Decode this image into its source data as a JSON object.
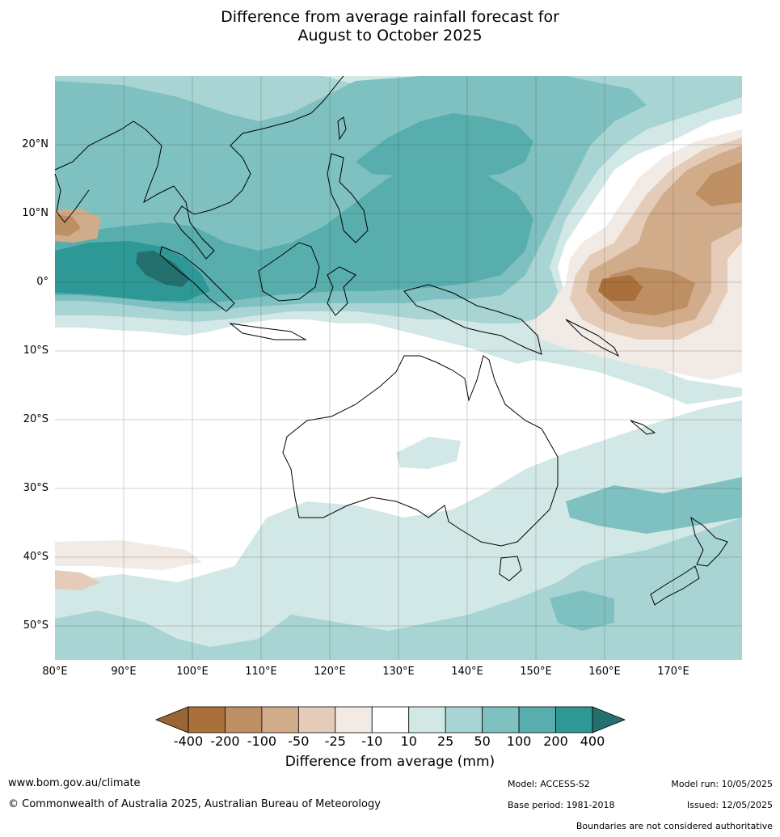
{
  "title": {
    "line1": "Difference from average rainfall forecast for",
    "line2": "August to October 2025"
  },
  "map": {
    "lat_labels": [
      "20°N",
      "10°N",
      "0°",
      "10°S",
      "20°S",
      "30°S",
      "40°S",
      "50°S"
    ],
    "lon_labels": [
      "80°E",
      "90°E",
      "100°E",
      "110°E",
      "120°E",
      "130°E",
      "140°E",
      "150°E",
      "160°E",
      "170°E"
    ],
    "lat_range": [
      -55,
      30
    ],
    "lon_range": [
      80,
      180
    ],
    "grid": true
  },
  "colorbar": {
    "ticks": [
      "-400",
      "-200",
      "-100",
      "-50",
      "-25",
      "-10",
      "10",
      "25",
      "50",
      "100",
      "200",
      "400"
    ],
    "colors": [
      "#9a6534",
      "#aa703b",
      "#be8f63",
      "#d1ac8b",
      "#e4ccb8",
      "#f2ebe5",
      "#ffffff",
      "#d2e8e6",
      "#a8d4d3",
      "#7fc1c0",
      "#58aeac",
      "#2d9896",
      "#23706e"
    ],
    "label": "Difference from average (mm)"
  },
  "footer": {
    "url": "www.bom.gov.au/climate",
    "copyright": "© Commonwealth of Australia 2025, Australian Bureau of Meteorology",
    "model": "Model: ACCESS-S2",
    "base_period": "Base period: 1981-2018",
    "model_run": "Model run: 10/05/2025",
    "issued": "Issued: 12/05/2025",
    "disclaimer": "Boundaries are not considered authoritative"
  }
}
